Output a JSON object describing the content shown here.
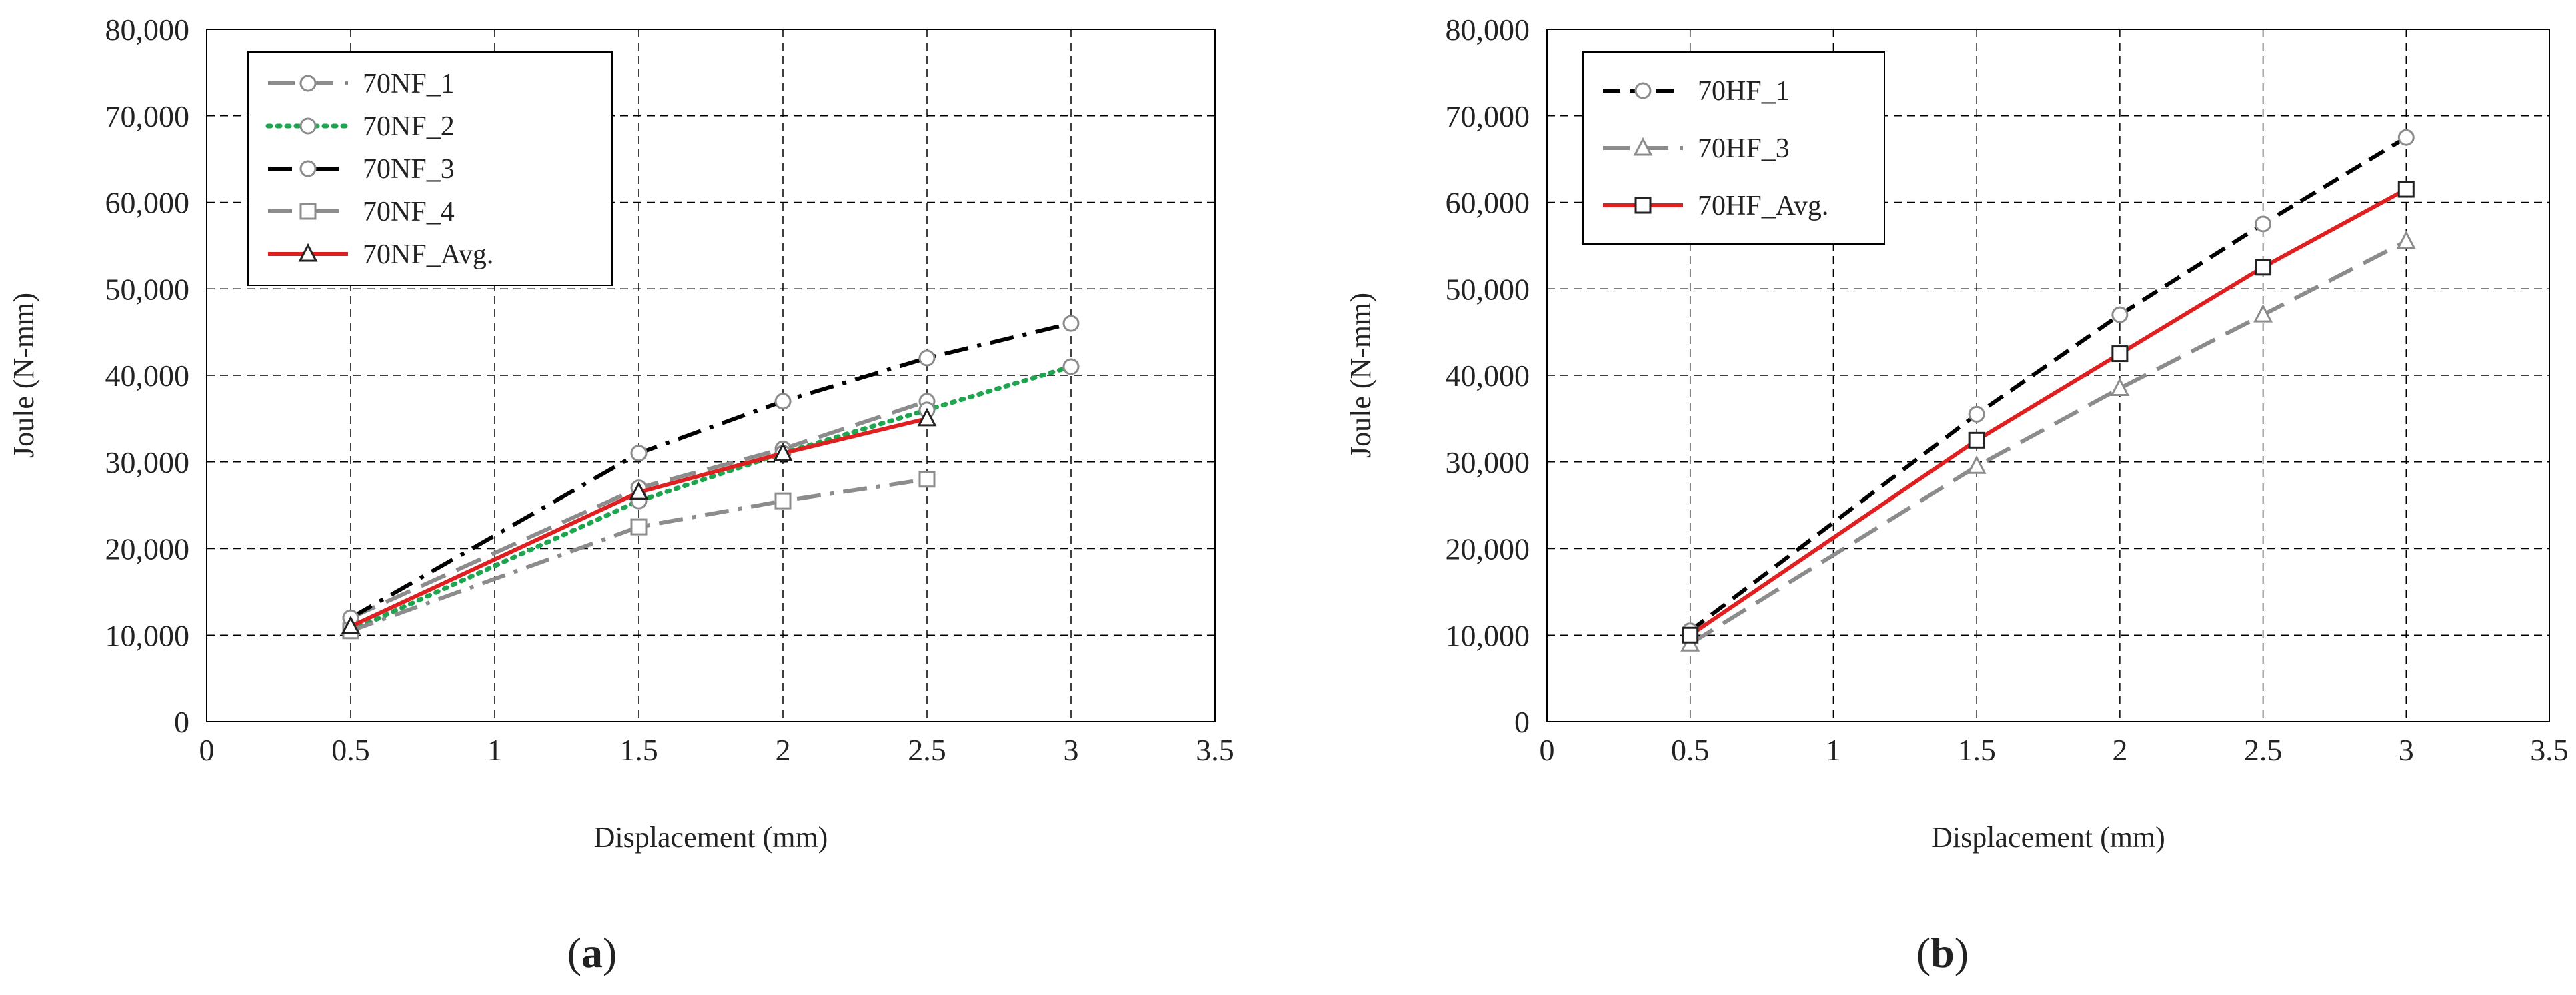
{
  "chart_data": [
    {
      "type": "line",
      "panel_label": "(a)",
      "panel_letter": "a",
      "xlabel": "Displacement (mm)",
      "ylabel": "Joule (N-mm)",
      "xlim": [
        0,
        3.5
      ],
      "ylim": [
        0,
        80000
      ],
      "x_ticks": [
        "0",
        "0.5",
        "1",
        "1.5",
        "2",
        "2.5",
        "3",
        "3.5"
      ],
      "y_ticks": [
        "0",
        "10,000",
        "20,000",
        "30,000",
        "40,000",
        "50,000",
        "60,000",
        "70,000",
        "80,000"
      ],
      "grid": true,
      "legend_position": "top-left",
      "series": [
        {
          "name": "70NF_1",
          "color": "#8c8c8c",
          "dash": "long-dash",
          "marker": "circle",
          "x": [
            0.5,
            1.5,
            2,
            2.5
          ],
          "y": [
            12000,
            27000,
            31500,
            37000
          ]
        },
        {
          "name": "70NF_2",
          "color": "#1fa550",
          "dash": "dotted",
          "marker": "circle",
          "x": [
            0.5,
            1.5,
            2,
            2.5,
            3
          ],
          "y": [
            10500,
            25500,
            31000,
            36000,
            41000
          ]
        },
        {
          "name": "70NF_3",
          "color": "#000000",
          "dash": "dash-dot",
          "marker": "circle",
          "x": [
            0.5,
            1.5,
            2,
            2.5,
            3
          ],
          "y": [
            12000,
            31000,
            37000,
            42000,
            46000
          ]
        },
        {
          "name": "70NF_4",
          "color": "#8c8c8c",
          "dash": "dash-dot",
          "marker": "square",
          "x": [
            0.5,
            1.5,
            2,
            2.5
          ],
          "y": [
            10500,
            22500,
            25500,
            28000
          ]
        },
        {
          "name": "70NF_Avg.",
          "color": "#e02020",
          "dash": "solid",
          "marker": "triangle",
          "x": [
            0.5,
            1.5,
            2,
            2.5
          ],
          "y": [
            11000,
            26500,
            31000,
            35000
          ]
        }
      ]
    },
    {
      "type": "line",
      "panel_label": "(b)",
      "panel_letter": "b",
      "xlabel": "Displacement (mm)",
      "ylabel": "Joule (N-mm)",
      "xlim": [
        0,
        3.5
      ],
      "ylim": [
        0,
        80000
      ],
      "x_ticks": [
        "0",
        "0.5",
        "1",
        "1.5",
        "2",
        "2.5",
        "3",
        "3.5"
      ],
      "y_ticks": [
        "0",
        "10,000",
        "20,000",
        "30,000",
        "40,000",
        "50,000",
        "60,000",
        "70,000",
        "80,000"
      ],
      "grid": true,
      "legend_position": "top-left",
      "series": [
        {
          "name": "70HF_1",
          "color": "#000000",
          "dash": "dashed",
          "marker": "circle",
          "x": [
            0.5,
            1.5,
            2,
            2.5,
            3
          ],
          "y": [
            10500,
            35500,
            47000,
            57500,
            67500
          ]
        },
        {
          "name": "70HF_3",
          "color": "#8c8c8c",
          "dash": "long-dash",
          "marker": "triangle",
          "x": [
            0.5,
            1.5,
            2,
            2.5,
            3
          ],
          "y": [
            9000,
            29500,
            38500,
            47000,
            55500
          ]
        },
        {
          "name": "70HF_Avg.",
          "color": "#e02020",
          "dash": "solid",
          "marker": "square",
          "x": [
            0.5,
            1.5,
            2,
            2.5,
            3
          ],
          "y": [
            10000,
            32500,
            42500,
            52500,
            61500
          ]
        }
      ]
    }
  ]
}
